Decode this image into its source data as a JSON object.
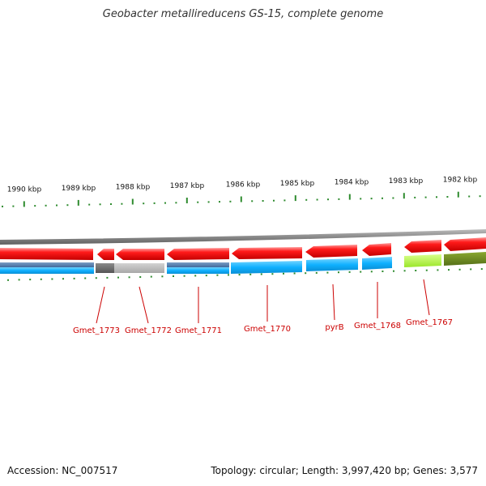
{
  "title": "Geobacter metallireducens GS-15, complete genome",
  "footer": {
    "accession": "Accession: NC_007517",
    "summary": "Topology: circular; Length: 3,997,420 bp; Genes: 3,577"
  },
  "scale": {
    "labels": [
      "1990 kbp",
      "1989 kbp",
      "1988 kbp",
      "1987 kbp",
      "1986 kbp",
      "1985 kbp",
      "1984 kbp",
      "1983 kbp",
      "1982 kbp"
    ]
  },
  "genes": [
    {
      "label": "Gmet_1773"
    },
    {
      "label": "Gmet_1772"
    },
    {
      "label": "Gmet_1771"
    },
    {
      "label": "Gmet_1770"
    },
    {
      "label": "pyrB"
    },
    {
      "label": "Gmet_1768"
    },
    {
      "label": "Gmet_1767"
    }
  ],
  "colors": {
    "forward_strand": "#ff1a1a",
    "blue_feature": "#1ab3ff",
    "gray_feature": "#b0b0b0",
    "green_feature": "#b3ff33",
    "tick": "#2e8b2e",
    "backbone": "#888888",
    "label": "#cc0000"
  }
}
